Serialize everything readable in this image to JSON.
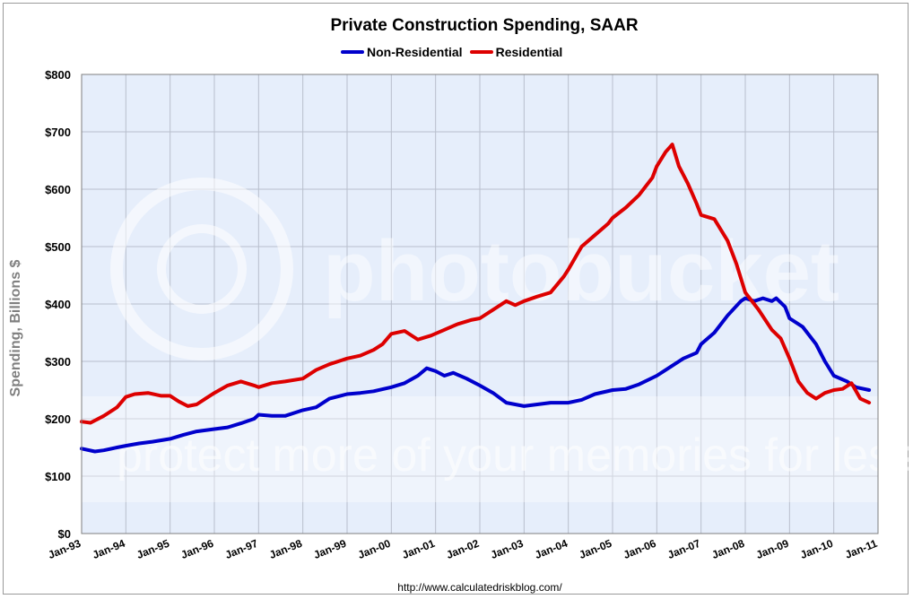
{
  "source_url": "http://www.calculatedriskblog.com/",
  "watermark": {
    "main": "photobucket",
    "tagline": "protect more of your memories for less!"
  },
  "chart_data": {
    "type": "line",
    "title": "Private Construction Spending, SAAR",
    "xlabel": "",
    "ylabel": "Spending, Billions $",
    "ylim": [
      0,
      800
    ],
    "yticks": [
      0,
      100,
      200,
      300,
      400,
      500,
      600,
      700,
      800
    ],
    "ytick_labels": [
      "$0",
      "$100",
      "$200",
      "$300",
      "$400",
      "$500",
      "$600",
      "$700",
      "$800"
    ],
    "xlim": [
      1993.0,
      2011.0
    ],
    "xtick_labels": [
      "Jan-93",
      "Jan-94",
      "Jan-95",
      "Jan-96",
      "Jan-97",
      "Jan-98",
      "Jan-99",
      "Jan-00",
      "Jan-01",
      "Jan-02",
      "Jan-03",
      "Jan-04",
      "Jan-05",
      "Jan-06",
      "Jan-07",
      "Jan-08",
      "Jan-09",
      "Jan-10",
      "Jan-11"
    ],
    "grid": true,
    "legend_position": "top-center",
    "colors": {
      "plot_bg": "#e6eefb",
      "grid": "#b8bfcc"
    },
    "series": [
      {
        "name": "Non-Residential",
        "color": "#0000cc",
        "points": [
          [
            1993.0,
            148
          ],
          [
            1993.3,
            143
          ],
          [
            1993.5,
            145
          ],
          [
            1993.8,
            150
          ],
          [
            1994.0,
            153
          ],
          [
            1994.3,
            157
          ],
          [
            1994.6,
            160
          ],
          [
            1995.0,
            165
          ],
          [
            1995.3,
            172
          ],
          [
            1995.6,
            178
          ],
          [
            1996.0,
            182
          ],
          [
            1996.3,
            185
          ],
          [
            1996.6,
            192
          ],
          [
            1996.9,
            200
          ],
          [
            1997.0,
            207
          ],
          [
            1997.3,
            205
          ],
          [
            1997.6,
            205
          ],
          [
            1998.0,
            215
          ],
          [
            1998.3,
            220
          ],
          [
            1998.6,
            235
          ],
          [
            1999.0,
            243
          ],
          [
            1999.3,
            245
          ],
          [
            1999.6,
            248
          ],
          [
            2000.0,
            255
          ],
          [
            2000.3,
            262
          ],
          [
            2000.6,
            275
          ],
          [
            2000.8,
            288
          ],
          [
            2001.0,
            283
          ],
          [
            2001.2,
            275
          ],
          [
            2001.4,
            280
          ],
          [
            2001.7,
            270
          ],
          [
            2002.0,
            258
          ],
          [
            2002.3,
            245
          ],
          [
            2002.6,
            228
          ],
          [
            2003.0,
            222
          ],
          [
            2003.3,
            225
          ],
          [
            2003.6,
            228
          ],
          [
            2004.0,
            228
          ],
          [
            2004.3,
            233
          ],
          [
            2004.6,
            243
          ],
          [
            2005.0,
            250
          ],
          [
            2005.3,
            252
          ],
          [
            2005.6,
            260
          ],
          [
            2006.0,
            275
          ],
          [
            2006.3,
            290
          ],
          [
            2006.6,
            305
          ],
          [
            2006.9,
            315
          ],
          [
            2007.0,
            330
          ],
          [
            2007.3,
            350
          ],
          [
            2007.6,
            380
          ],
          [
            2007.9,
            405
          ],
          [
            2008.0,
            410
          ],
          [
            2008.2,
            405
          ],
          [
            2008.4,
            410
          ],
          [
            2008.6,
            405
          ],
          [
            2008.7,
            410
          ],
          [
            2008.9,
            395
          ],
          [
            2009.0,
            375
          ],
          [
            2009.3,
            360
          ],
          [
            2009.6,
            330
          ],
          [
            2009.8,
            300
          ],
          [
            2010.0,
            275
          ],
          [
            2010.3,
            265
          ],
          [
            2010.5,
            255
          ],
          [
            2010.8,
            250
          ]
        ]
      },
      {
        "name": "Residential",
        "color": "#dd0000",
        "points": [
          [
            1993.0,
            195
          ],
          [
            1993.2,
            193
          ],
          [
            1993.5,
            205
          ],
          [
            1993.8,
            220
          ],
          [
            1994.0,
            238
          ],
          [
            1994.2,
            243
          ],
          [
            1994.5,
            245
          ],
          [
            1994.8,
            240
          ],
          [
            1995.0,
            240
          ],
          [
            1995.2,
            230
          ],
          [
            1995.4,
            222
          ],
          [
            1995.6,
            225
          ],
          [
            1995.8,
            235
          ],
          [
            1996.0,
            245
          ],
          [
            1996.3,
            258
          ],
          [
            1996.6,
            265
          ],
          [
            1996.9,
            258
          ],
          [
            1997.0,
            255
          ],
          [
            1997.3,
            262
          ],
          [
            1997.6,
            265
          ],
          [
            1998.0,
            270
          ],
          [
            1998.3,
            285
          ],
          [
            1998.6,
            295
          ],
          [
            1999.0,
            305
          ],
          [
            1999.3,
            310
          ],
          [
            1999.6,
            320
          ],
          [
            1999.8,
            330
          ],
          [
            2000.0,
            348
          ],
          [
            2000.3,
            353
          ],
          [
            2000.5,
            343
          ],
          [
            2000.6,
            338
          ],
          [
            2000.9,
            345
          ],
          [
            2001.2,
            355
          ],
          [
            2001.5,
            365
          ],
          [
            2001.8,
            372
          ],
          [
            2002.0,
            375
          ],
          [
            2002.3,
            390
          ],
          [
            2002.6,
            405
          ],
          [
            2002.8,
            398
          ],
          [
            2003.0,
            405
          ],
          [
            2003.3,
            413
          ],
          [
            2003.6,
            420
          ],
          [
            2003.9,
            448
          ],
          [
            2004.0,
            460
          ],
          [
            2004.3,
            500
          ],
          [
            2004.6,
            520
          ],
          [
            2004.9,
            540
          ],
          [
            2005.0,
            550
          ],
          [
            2005.3,
            568
          ],
          [
            2005.6,
            590
          ],
          [
            2005.9,
            620
          ],
          [
            2006.0,
            640
          ],
          [
            2006.2,
            665
          ],
          [
            2006.35,
            678
          ],
          [
            2006.5,
            640
          ],
          [
            2006.7,
            610
          ],
          [
            2006.9,
            575
          ],
          [
            2007.0,
            555
          ],
          [
            2007.3,
            548
          ],
          [
            2007.6,
            510
          ],
          [
            2007.8,
            470
          ],
          [
            2008.0,
            420
          ],
          [
            2008.3,
            390
          ],
          [
            2008.6,
            355
          ],
          [
            2008.8,
            340
          ],
          [
            2009.0,
            305
          ],
          [
            2009.2,
            265
          ],
          [
            2009.4,
            245
          ],
          [
            2009.6,
            235
          ],
          [
            2009.8,
            245
          ],
          [
            2010.0,
            250
          ],
          [
            2010.2,
            252
          ],
          [
            2010.4,
            262
          ],
          [
            2010.6,
            235
          ],
          [
            2010.8,
            228
          ]
        ]
      }
    ]
  }
}
